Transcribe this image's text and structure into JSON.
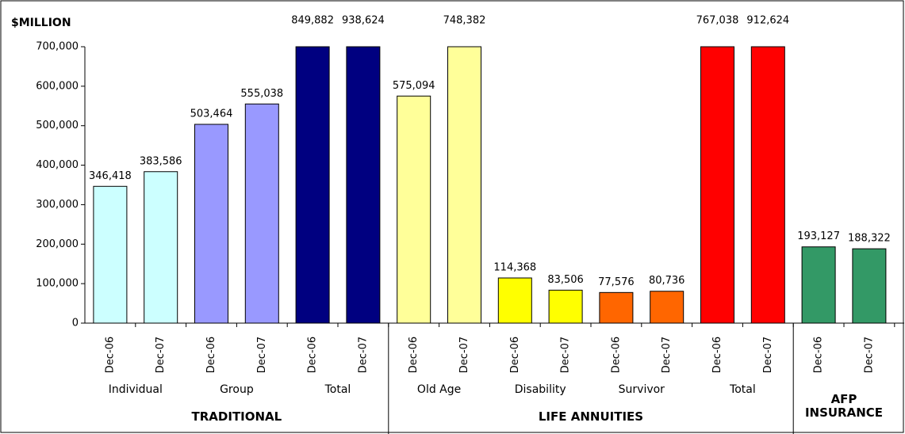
{
  "chart_data": {
    "type": "bar",
    "title": "$MILLION",
    "ylim": [
      0,
      700000
    ],
    "yticks": [
      0,
      {
        "value": 100000,
        "label": "100,000"
      },
      {
        "value": 200000,
        "label": "200,000"
      },
      {
        "value": 300000,
        "label": "300,000"
      },
      {
        "value": 400000,
        "label": "400,000"
      },
      {
        "value": 500000,
        "label": "500,000"
      },
      {
        "value": 600000,
        "label": "600,000"
      },
      {
        "value": 700000,
        "label": "700,000"
      }
    ],
    "groups": [
      {
        "name": "TRADITIONAL",
        "subgroups": [
          {
            "name": "Individual",
            "color": "#ccffff",
            "categories": [
              "Dec-06",
              "Dec-07"
            ],
            "values": [
              346418,
              383586
            ],
            "value_labels": [
              "346,418",
              "383,586"
            ]
          },
          {
            "name": "Group",
            "color": "#9999ff",
            "categories": [
              "Dec-06",
              "Dec-07"
            ],
            "values": [
              503464,
              555038
            ],
            "value_labels": [
              "503,464",
              "555,038"
            ]
          },
          {
            "name": "Total",
            "color": "#000080",
            "categories": [
              "Dec-06",
              "Dec-07"
            ],
            "values": [
              849882,
              938624
            ],
            "value_labels": [
              "849,882",
              "938,624"
            ]
          }
        ]
      },
      {
        "name": "LIFE ANNUITIES",
        "subgroups": [
          {
            "name": "Old Age",
            "color": "#ffff99",
            "categories": [
              "Dec-06",
              "Dec-07"
            ],
            "values": [
              575094,
              748382
            ],
            "value_labels": [
              "575,094",
              "748,382"
            ]
          },
          {
            "name": "Disability",
            "color": "#ffff00",
            "categories": [
              "Dec-06",
              "Dec-07"
            ],
            "values": [
              114368,
              83506
            ],
            "value_labels": [
              "114,368",
              "83,506"
            ]
          },
          {
            "name": "Survivor",
            "color": "#ff6600",
            "categories": [
              "Dec-06",
              "Dec-07"
            ],
            "values": [
              77576,
              80736
            ],
            "value_labels": [
              "77,576",
              "80,736"
            ]
          },
          {
            "name": "Total",
            "color": "#ff0000",
            "categories": [
              "Dec-06",
              "Dec-07"
            ],
            "values": [
              767038,
              912624
            ],
            "value_labels": [
              "767,038",
              "912,624"
            ]
          }
        ]
      },
      {
        "name": "AFP INSURANCE",
        "subgroups": [
          {
            "color": "#339966",
            "categories": [
              "Dec-06",
              "Dec-07"
            ],
            "values": [
              193127,
              188322
            ],
            "value_labels": [
              "193,127",
              "188,322"
            ]
          }
        ]
      }
    ]
  }
}
